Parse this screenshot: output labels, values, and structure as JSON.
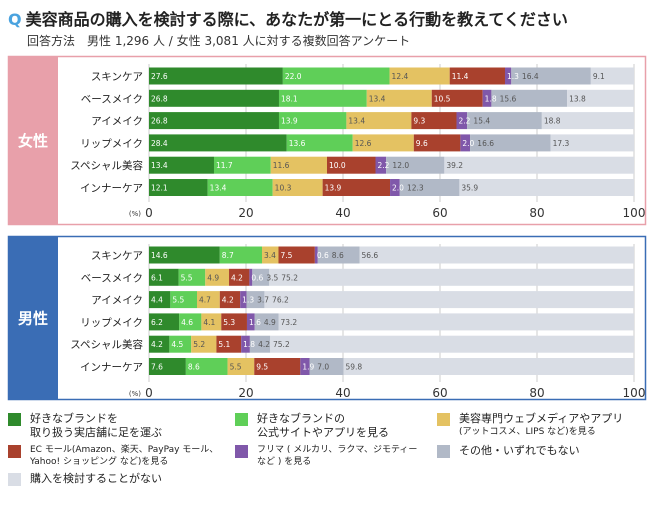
{
  "title": {
    "q": "Q",
    "text": "美容商品の購入を検討する際に、あなたが第一にとる行動を教えてください"
  },
  "subtitle": "回答方法　男性 1,296 人 / 女性 3,081 人に対する複数回答アンケート",
  "chart_data": [
    {
      "type": "bar",
      "orientation": "horizontal",
      "stacked": true,
      "panel": "女性",
      "panel_color": "#e8a0aa",
      "categories": [
        "スキンケア",
        "ベースメイク",
        "アイメイク",
        "リップメイク",
        "スペシャル美容",
        "インナーケア"
      ],
      "series": [
        {
          "name": "好きなブランドを取り扱う実店舗に足を運ぶ",
          "values": [
            27.6,
            26.8,
            26.8,
            28.4,
            13.4,
            12.1
          ]
        },
        {
          "name": "好きなブランドの公式サイトやアプリを見る",
          "values": [
            22.0,
            18.1,
            13.9,
            13.6,
            11.7,
            13.4
          ]
        },
        {
          "name": "美容専門ウェブメディアやアプリ(アットコスメ、LIPSなど)を見る",
          "values": [
            12.4,
            13.4,
            13.4,
            12.6,
            11.6,
            10.3
          ]
        },
        {
          "name": "ECモール(Amazon、楽天、PayPayモール、Yahoo!ショッピングなど)を見る",
          "values": [
            11.4,
            10.5,
            9.3,
            9.6,
            10.0,
            13.9
          ]
        },
        {
          "name": "フリマ(メルカリ、ラクマ、ジモティーなど)を見る",
          "values": [
            1.3,
            1.8,
            2.2,
            2.0,
            2.2,
            2.0
          ]
        },
        {
          "name": "その他・いずれでもない",
          "values": [
            16.4,
            15.6,
            15.4,
            16.6,
            12.0,
            12.3
          ]
        },
        {
          "name": "購入を検討することがない",
          "values": [
            9.1,
            13.8,
            18.8,
            17.3,
            39.2,
            35.9
          ]
        }
      ],
      "xlim": [
        0,
        100
      ],
      "xticks": [
        "0",
        "20",
        "40",
        "60",
        "80",
        "100"
      ],
      "xunit": "(%)",
      "grid": true
    },
    {
      "type": "bar",
      "orientation": "horizontal",
      "stacked": true,
      "panel": "男性",
      "panel_color": "#3a6db5",
      "categories": [
        "スキンケア",
        "ベースメイク",
        "アイメイク",
        "リップメイク",
        "スペシャル美容",
        "インナーケア"
      ],
      "series": [
        {
          "name": "好きなブランドを取り扱う実店舗に足を運ぶ",
          "values": [
            14.6,
            6.1,
            4.4,
            6.2,
            4.2,
            7.6
          ]
        },
        {
          "name": "好きなブランドの公式サイトやアプリを見る",
          "values": [
            8.7,
            5.5,
            5.5,
            4.6,
            4.5,
            8.6
          ]
        },
        {
          "name": "美容専門ウェブメディアやアプリ(アットコスメ、LIPSなど)を見る",
          "values": [
            3.4,
            4.9,
            4.7,
            4.1,
            5.2,
            5.5
          ]
        },
        {
          "name": "ECモール(Amazon、楽天、PayPayモール、Yahoo!ショッピングなど)を見る",
          "values": [
            7.5,
            4.2,
            4.2,
            5.3,
            5.1,
            9.5
          ]
        },
        {
          "name": "フリマ(メルカリ、ラクマ、ジモティーなど)を見る",
          "values": [
            0.6,
            0.6,
            1.3,
            1.6,
            1.8,
            1.9
          ]
        },
        {
          "name": "その他・いずれでもない",
          "values": [
            8.6,
            3.5,
            3.7,
            4.9,
            4.2,
            7.0
          ]
        },
        {
          "name": "購入を検討することがない",
          "values": [
            56.6,
            75.2,
            76.2,
            73.2,
            75.2,
            59.8
          ]
        }
      ],
      "xlim": [
        0,
        100
      ],
      "xticks": [
        "0",
        "20",
        "40",
        "60",
        "80",
        "100"
      ],
      "xunit": "(%)",
      "grid": true
    }
  ],
  "colors": [
    "#2f8a2c",
    "#5fcf58",
    "#e4c262",
    "#a9412d",
    "#8058aa",
    "#b1b9c7",
    "#d9dde5"
  ],
  "text_colors": [
    "#fff",
    "#fff",
    "#555",
    "#fff",
    "#fff",
    "#555",
    "#555"
  ],
  "legend": [
    {
      "line1": "好きなブランドを",
      "line2": "取り扱う実店舗に足を運ぶ"
    },
    {
      "line1": "好きなブランドの",
      "line2": "公式サイトやアプリを見る"
    },
    {
      "line1": "美容専門ウェブメディアやアプリ",
      "line2": "(アットコスメ、LIPS など)を見る"
    },
    {
      "line1": "EC モール(Amazon、楽天、PayPay モール、",
      "line2": "Yahoo! ショッピング など)を見る"
    },
    {
      "line1": "フリマ ( メルカリ、ラクマ、ジモティー",
      "line2": "など ) を見る"
    },
    {
      "line1": "その他・いずれでもない",
      "line2": ""
    },
    {
      "line1": "購入を検討することがない",
      "line2": ""
    }
  ]
}
